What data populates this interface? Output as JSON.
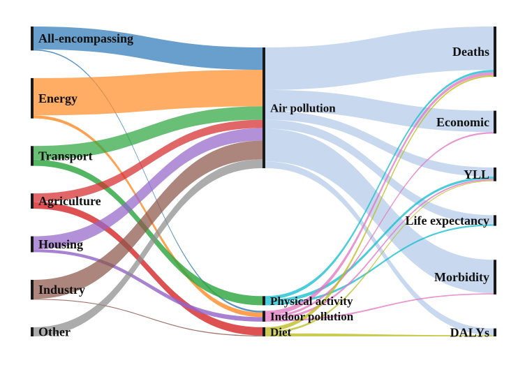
{
  "diagram": {
    "type": "sankey",
    "sources": [
      {
        "id": "all",
        "label": "All-encompassing",
        "color": "#2f7ab9"
      },
      {
        "id": "energy",
        "label": "Energy",
        "color": "#ff8c2a"
      },
      {
        "id": "transport",
        "label": "Transport",
        "color": "#2ea640"
      },
      {
        "id": "agriculture",
        "label": "Agriculture",
        "color": "#d62b2d"
      },
      {
        "id": "housing",
        "label": "Housing",
        "color": "#9467c9"
      },
      {
        "id": "industry",
        "label": "Industry",
        "color": "#8c564b"
      },
      {
        "id": "other",
        "label": "Other",
        "color": "#8c8c8c"
      }
    ],
    "pathways": [
      {
        "id": "air",
        "label": "Air pollution",
        "color": "#aec7e8"
      },
      {
        "id": "physical",
        "label": "Physical activity",
        "color": "#17becf"
      },
      {
        "id": "indoor",
        "label": "Indoor pollution",
        "color": "#e377c2"
      },
      {
        "id": "diet",
        "label": "Diet",
        "color": "#bcbd22"
      }
    ],
    "outcomes": [
      {
        "id": "deaths",
        "label": "Deaths"
      },
      {
        "id": "economic",
        "label": "Economic"
      },
      {
        "id": "yll",
        "label": "YLL"
      },
      {
        "id": "life",
        "label": "Life expectancy"
      },
      {
        "id": "morbidity",
        "label": "Morbidity"
      },
      {
        "id": "dalys",
        "label": "DALYs"
      }
    ],
    "flows_source_pathway": [
      {
        "from": "all",
        "to": "air",
        "value": 30
      },
      {
        "from": "all",
        "to": "indoor",
        "value": 1.5
      },
      {
        "from": "energy",
        "to": "air",
        "value": 49
      },
      {
        "from": "energy",
        "to": "indoor",
        "value": 4
      },
      {
        "from": "transport",
        "to": "air",
        "value": 18
      },
      {
        "from": "transport",
        "to": "physical",
        "value": 8
      },
      {
        "from": "agriculture",
        "to": "air",
        "value": 11
      },
      {
        "from": "agriculture",
        "to": "diet",
        "value": 9
      },
      {
        "from": "housing",
        "to": "air",
        "value": 17
      },
      {
        "from": "housing",
        "to": "indoor",
        "value": 4
      },
      {
        "from": "industry",
        "to": "air",
        "value": 25
      },
      {
        "from": "industry",
        "to": "diet",
        "value": 1
      },
      {
        "from": "other",
        "to": "air",
        "value": 12
      }
    ],
    "flows_pathway_outcome": [
      {
        "from": "air",
        "to": "deaths",
        "value": 57
      },
      {
        "from": "air",
        "to": "economic",
        "value": 28
      },
      {
        "from": "air",
        "to": "yll",
        "value": 12
      },
      {
        "from": "air",
        "to": "life",
        "value": 12
      },
      {
        "from": "air",
        "to": "morbidity",
        "value": 44
      },
      {
        "from": "air",
        "to": "dalys",
        "value": 9
      },
      {
        "from": "physical",
        "to": "deaths",
        "value": 3
      },
      {
        "from": "physical",
        "to": "yll",
        "value": 3
      },
      {
        "from": "physical",
        "to": "life",
        "value": 2
      },
      {
        "from": "indoor",
        "to": "deaths",
        "value": 4
      },
      {
        "from": "indoor",
        "to": "economic",
        "value": 2
      },
      {
        "from": "indoor",
        "to": "yll",
        "value": 2
      },
      {
        "from": "indoor",
        "to": "morbidity",
        "value": 1.5
      },
      {
        "from": "diet",
        "to": "deaths",
        "value": 2
      },
      {
        "from": "diet",
        "to": "yll",
        "value": 1
      },
      {
        "from": "diet",
        "to": "dalys",
        "value": 1.5
      }
    ]
  }
}
